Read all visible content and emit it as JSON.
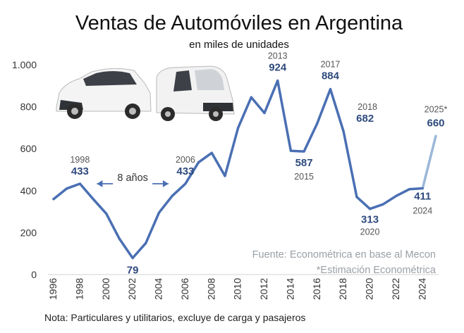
{
  "title": "Ventas de Automóviles en Argentina",
  "subtitle": "en miles de unidades",
  "source": "Fuente: Econométrica en base al Mecon",
  "estimate_note": "*Estimación Econométrica",
  "note": "Nota: Particulares y utilitarios, excluye de carga y pasajeros",
  "span_label": "8 años",
  "colors": {
    "line": "#4a6fb3",
    "estimate": "#9bb7d8",
    "label": "#2e4a7d",
    "arrow": "#4a6fb3"
  },
  "chart_data": {
    "type": "line",
    "title": "Ventas de Automóviles en Argentina",
    "subtitle": "en miles de unidades",
    "xlabel": "",
    "ylabel": "",
    "ylim": [
      0,
      1000
    ],
    "yticks": [
      0,
      200,
      400,
      600,
      800,
      1000
    ],
    "ytick_labels": [
      "0",
      "200",
      "400",
      "600",
      "800",
      "1.000"
    ],
    "xticks": [
      1996,
      1998,
      2000,
      2002,
      2004,
      2006,
      2008,
      2010,
      2012,
      2014,
      2016,
      2018,
      2020,
      2022,
      2024
    ],
    "grid": false,
    "x": [
      1996,
      1997,
      1998,
      1999,
      2000,
      2001,
      2002,
      2003,
      2004,
      2005,
      2006,
      2007,
      2008,
      2009,
      2010,
      2011,
      2012,
      2013,
      2014,
      2015,
      2016,
      2017,
      2018,
      2019,
      2020,
      2021,
      2022,
      2023,
      2024,
      2025
    ],
    "y": [
      360,
      410,
      433,
      360,
      290,
      170,
      79,
      150,
      295,
      375,
      433,
      535,
      580,
      470,
      700,
      845,
      770,
      924,
      590,
      587,
      720,
      884,
      682,
      370,
      313,
      335,
      375,
      407,
      411,
      660
    ],
    "estimate_from": 2024,
    "annotations": [
      {
        "x": 1998,
        "value": "433",
        "year": "1998"
      },
      {
        "x": 2002,
        "value": "79",
        "year": ""
      },
      {
        "x": 2006,
        "value": "433",
        "year": "2006"
      },
      {
        "x": 2013,
        "value": "924",
        "year": "2013"
      },
      {
        "x": 2015,
        "value": "587",
        "year": "2015"
      },
      {
        "x": 2017,
        "value": "884",
        "year": "2017"
      },
      {
        "x": 2018,
        "value": "682",
        "year": "2018"
      },
      {
        "x": 2020,
        "value": "313",
        "year": "2020"
      },
      {
        "x": 2024,
        "value": "411",
        "year": "2024"
      },
      {
        "x": 2025,
        "value": "660",
        "year": "2025*"
      }
    ],
    "span": {
      "from": 1998,
      "to": 2006,
      "label": "8 años"
    }
  }
}
